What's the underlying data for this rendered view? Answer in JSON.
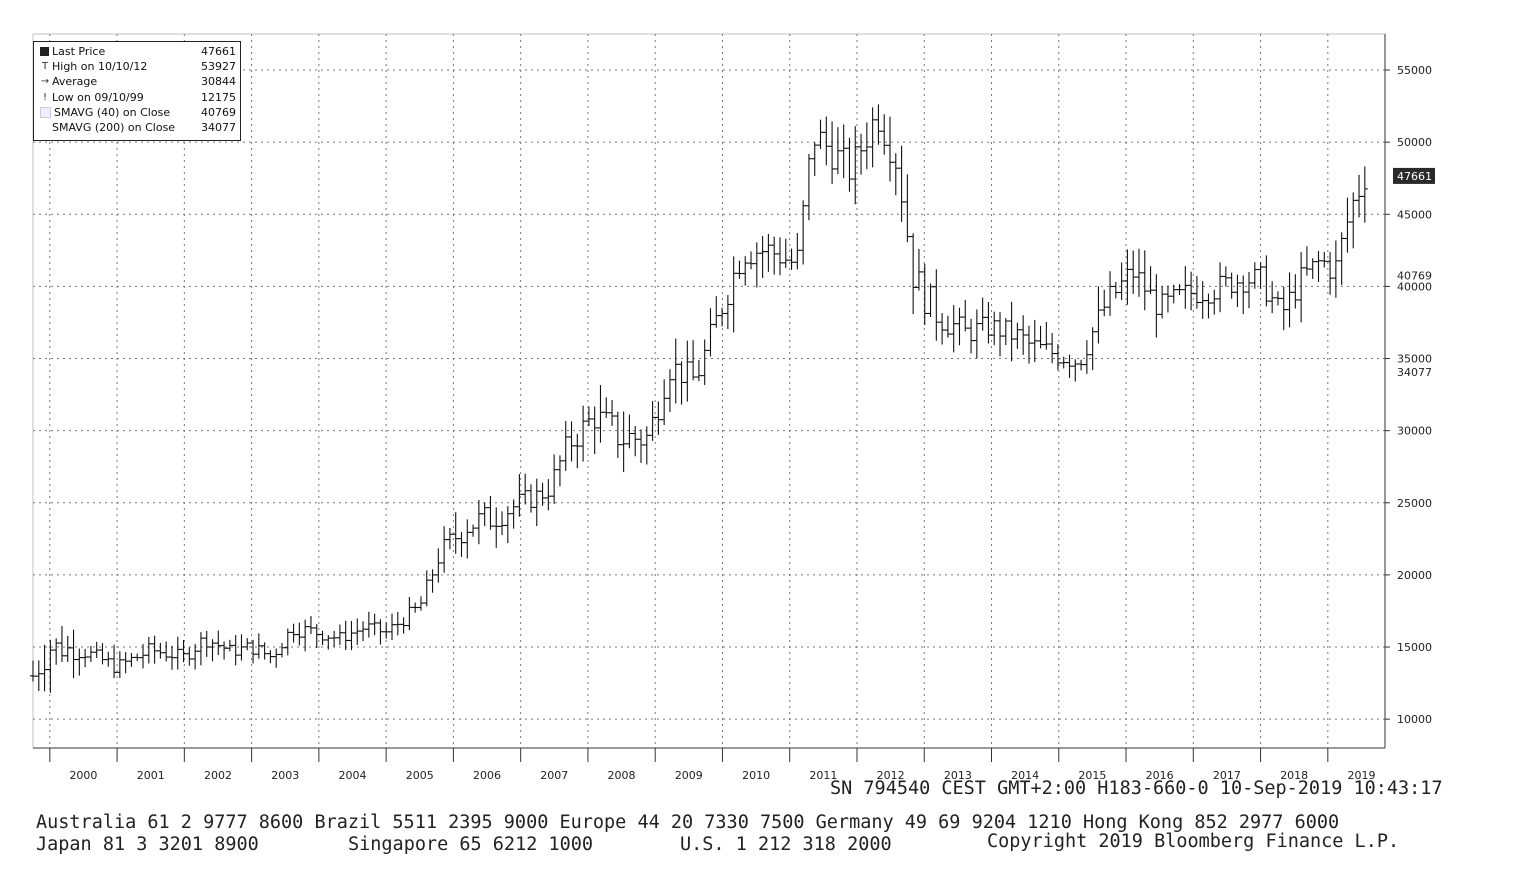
{
  "legend": {
    "items": [
      {
        "label": "Last Price",
        "value": "47661"
      },
      {
        "label": "High on 10/10/12",
        "value": "53927"
      },
      {
        "label": "Average",
        "value": "30844"
      },
      {
        "label": "Low on 09/10/99",
        "value": "12175"
      },
      {
        "label": "SMAVG (40)  on Close",
        "value": "40769"
      },
      {
        "label": "SMAVG (200)  on Close",
        "value": "34077"
      }
    ]
  },
  "chart_data": {
    "type": "bar",
    "subtype": "ohlc-price-bars",
    "x_tick_labels": [
      "2000",
      "2001",
      "2002",
      "2003",
      "2004",
      "2005",
      "2006",
      "2007",
      "2008",
      "2009",
      "2010",
      "2011",
      "2012",
      "2013",
      "2014",
      "2015",
      "2016",
      "2017",
      "2018",
      "2019"
    ],
    "y_tick_labels": [
      "10000",
      "15000",
      "20000",
      "25000",
      "30000",
      "35000",
      "40000",
      "45000",
      "50000",
      "55000"
    ],
    "ylim": [
      8000,
      57500
    ],
    "xlim": [
      1999.75,
      2019.85
    ],
    "grid": true,
    "legend_placement": "top-left",
    "axis_side": "right",
    "price_tags": [
      {
        "text": "47661",
        "value": 47661,
        "style": "filled"
      },
      {
        "text": "40769",
        "value": 40769,
        "style": "plain"
      },
      {
        "text": "34077",
        "value": 34077,
        "style": "plain"
      }
    ],
    "anchors": [
      [
        1999.75,
        13000,
        2.2
      ],
      [
        2000.0,
        15000,
        2.6
      ],
      [
        2000.5,
        14700,
        1.2
      ],
      [
        2001.0,
        13600,
        1.2
      ],
      [
        2001.5,
        14800,
        1.2
      ],
      [
        2002.0,
        14300,
        1.0
      ],
      [
        2002.3,
        15600,
        1.2
      ],
      [
        2002.7,
        14700,
        1.0
      ],
      [
        2003.0,
        15000,
        1.2
      ],
      [
        2003.3,
        14300,
        1.0
      ],
      [
        2003.6,
        16300,
        1.2
      ],
      [
        2004.0,
        16000,
        1.2
      ],
      [
        2004.3,
        15600,
        1.0
      ],
      [
        2004.7,
        16400,
        1.0
      ],
      [
        2005.0,
        16000,
        1.0
      ],
      [
        2005.5,
        17800,
        1.2
      ],
      [
        2005.8,
        21500,
        1.6
      ],
      [
        2006.2,
        23500,
        2.5
      ],
      [
        2006.6,
        24000,
        2.2
      ],
      [
        2007.0,
        25000,
        1.8
      ],
      [
        2007.4,
        25800,
        1.5
      ],
      [
        2007.7,
        29000,
        2.2
      ],
      [
        2008.1,
        31000,
        2.5
      ],
      [
        2008.5,
        29500,
        3.0
      ],
      [
        2008.9,
        29500,
        2.8
      ],
      [
        2009.2,
        34500,
        2.5
      ],
      [
        2009.6,
        33500,
        2.0
      ],
      [
        2009.9,
        37500,
        2.3
      ],
      [
        2010.3,
        42500,
        2.8
      ],
      [
        2010.7,
        42500,
        2.3
      ],
      [
        2011.1,
        41500,
        2.0
      ],
      [
        2011.35,
        50500,
        3.2
      ],
      [
        2011.6,
        49500,
        2.8
      ],
      [
        2011.9,
        48000,
        2.5
      ],
      [
        2012.3,
        52000,
        2.8
      ],
      [
        2012.6,
        48500,
        2.5
      ],
      [
        2012.85,
        40500,
        3.2
      ],
      [
        2013.2,
        38000,
        2.5
      ],
      [
        2013.6,
        36800,
        2.0
      ],
      [
        2014.0,
        37200,
        1.8
      ],
      [
        2014.4,
        36500,
        2.0
      ],
      [
        2014.6,
        35800,
        2.2
      ],
      [
        2014.9,
        35400,
        1.8
      ],
      [
        2015.3,
        34800,
        1.8
      ],
      [
        2015.7,
        38800,
        2.3
      ],
      [
        2016.1,
        41000,
        2.4
      ],
      [
        2016.5,
        38500,
        2.0
      ],
      [
        2016.9,
        39500,
        2.0
      ],
      [
        2017.3,
        39800,
        2.0
      ],
      [
        2017.7,
        40500,
        2.0
      ],
      [
        2018.0,
        40500,
        2.0
      ],
      [
        2018.3,
        38000,
        2.2
      ],
      [
        2018.6,
        40500,
        2.0
      ],
      [
        2018.9,
        41800,
        2.0
      ],
      [
        2019.1,
        41000,
        2.2
      ],
      [
        2019.35,
        45500,
        2.8
      ],
      [
        2019.55,
        47661,
        2.5
      ]
    ]
  },
  "footer": {
    "line1": "SN 794540 CEST GMT+2:00 H183-660-0 10-Sep-2019 10:43:17",
    "line2": "Australia 61 2 9777 8600 Brazil 5511 2395 9000 Europe 44 20 7330 7500 Germany 49 69 9204 1210 Hong Kong 852 2977 6000",
    "line3a": "Japan 81 3 3201 8900",
    "line3b": "Singapore 65 6212 1000",
    "line3c": "U.S. 1 212 318 2000",
    "line3d": "Copyright 2019 Bloomberg Finance L.P."
  }
}
